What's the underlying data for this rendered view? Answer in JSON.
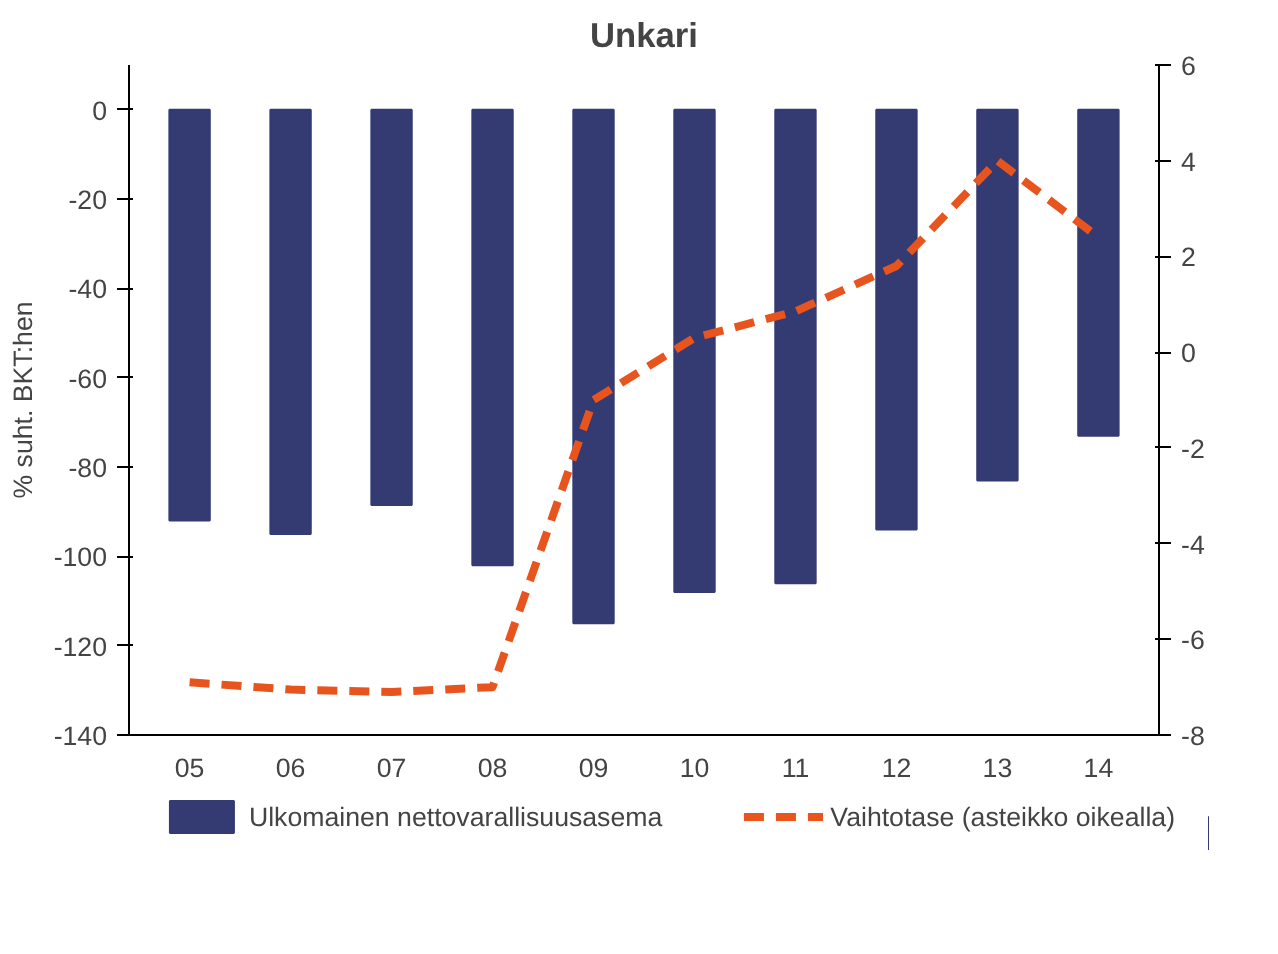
{
  "chart_data": {
    "type": "bar",
    "title": "Unkari",
    "ylabel": "% suht. BKT:hen",
    "categories": [
      "05",
      "06",
      "07",
      "08",
      "09",
      "10",
      "11",
      "12",
      "13",
      "14"
    ],
    "series": [
      {
        "name": "Ulkomainen nettovarallisuusasema",
        "color": "#343a72",
        "values": [
          -92,
          -95,
          -88.5,
          -102,
          -115,
          -108,
          -106,
          -94,
          -83,
          -73
        ]
      },
      {
        "name": "Vaihtotase (asteikko oikealla)",
        "type": "line",
        "axis": "y2",
        "color": "#e8541e",
        "line_style": "dashed",
        "values": [
          -6.9,
          -7.05,
          -7.1,
          -7.0,
          -1.0,
          0.3,
          0.85,
          1.8,
          4.0,
          2.4
        ]
      }
    ],
    "ylim": [
      -140,
      10
    ],
    "yticks": [
      -140,
      -120,
      -100,
      -80,
      -60,
      -40,
      -20,
      0
    ],
    "y2lim": [
      -8,
      6
    ],
    "y2ticks": [
      -8,
      -6,
      -4,
      -2,
      0,
      2,
      4,
      6
    ],
    "grid": false,
    "legend": "bottom"
  }
}
